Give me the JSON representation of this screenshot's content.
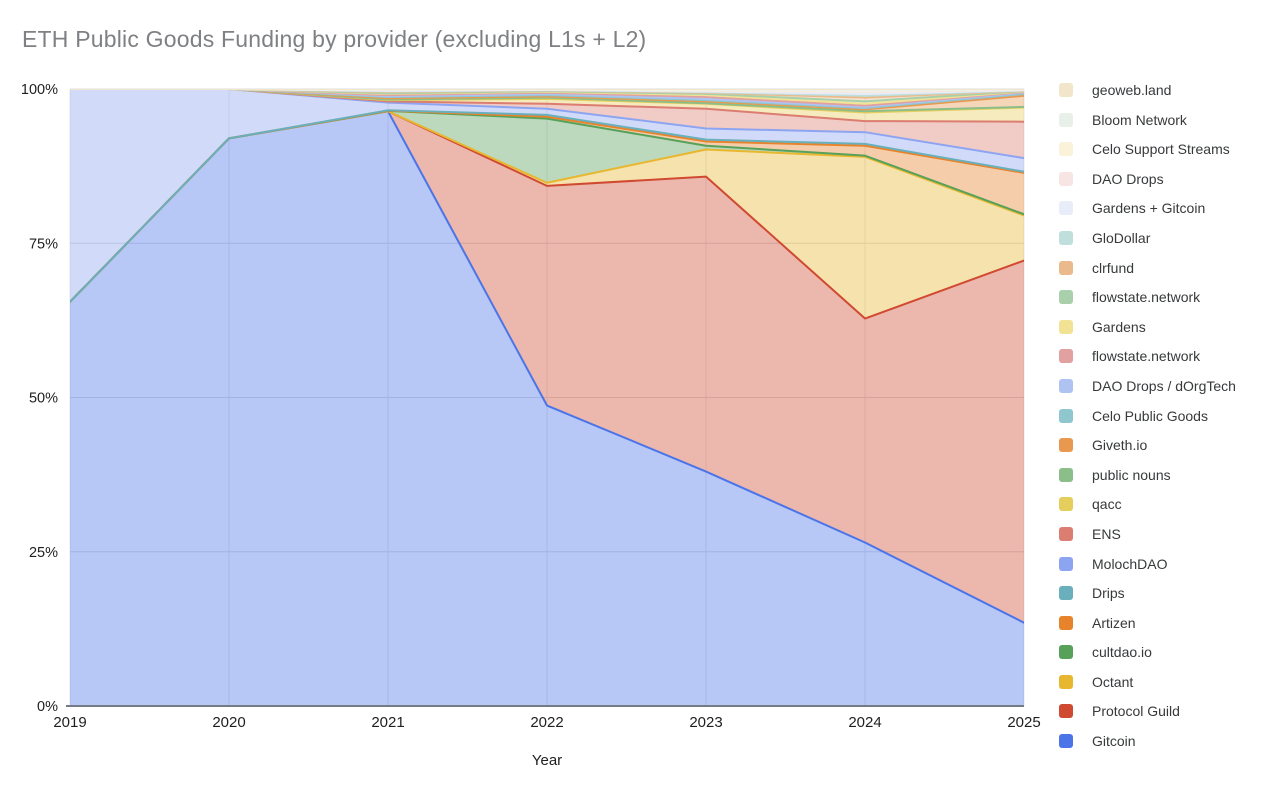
{
  "title": "ETH Public Goods Funding by provider (excluding L1s + L2)",
  "colors": {
    "title_text": "#7e8083",
    "grid_horizontal": "#dadce0",
    "grid_vertical": "#e4e7ec",
    "axis_baseline": "#757b85",
    "tick_text": "#1f1f1f",
    "legend_text": "#37393b",
    "background": "#ffffff"
  },
  "chart_data": {
    "type": "area",
    "stacked": "percent",
    "title": "ETH Public Goods Funding by provider (excluding L1s + L2)",
    "xlabel": "Year",
    "ylabel": "",
    "x": [
      2019,
      2020,
      2021,
      2022,
      2023,
      2024,
      2025
    ],
    "x_tick_labels": [
      "2019",
      "2020",
      "2021",
      "2022",
      "2023",
      "2024",
      "2025"
    ],
    "y_tick_labels": [
      "0%",
      "25%",
      "50%",
      "75%",
      "100%"
    ],
    "y_ticks_percent": [
      0,
      25,
      50,
      75,
      100
    ],
    "ylim": [
      0,
      100
    ],
    "grid": true,
    "legend_position": "right",
    "fill_opacity": 0.4,
    "line_width": 2,
    "series_bottom_to_top": [
      {
        "name": "Gitcoin",
        "color": "#4b74e9",
        "values": [
          65.5,
          92,
          96.4,
          48.7,
          38,
          26.5,
          13.5
        ]
      },
      {
        "name": "Protocol Guild",
        "color": "#d04a31",
        "values": [
          0,
          0,
          0,
          35.6,
          47.8,
          36.3,
          58.7
        ]
      },
      {
        "name": "Octant",
        "color": "#e8b730",
        "values": [
          0,
          0,
          0,
          0.5,
          4.4,
          26.2,
          7.3
        ]
      },
      {
        "name": "cultdao.io",
        "color": "#57a15b",
        "values": [
          0,
          0,
          0.05,
          10.4,
          0.6,
          0.2,
          0.2
        ]
      },
      {
        "name": "Artizen",
        "color": "#e7832b",
        "values": [
          0,
          0,
          0.05,
          0.3,
          0.7,
          1.6,
          6.7
        ]
      },
      {
        "name": "Drips",
        "color": "#6aafbc",
        "values": [
          0,
          0,
          0.05,
          0.3,
          0.3,
          0.3,
          0.2
        ]
      },
      {
        "name": "MolochDAO",
        "color": "#8da5f1",
        "values": [
          34.5,
          8,
          1.25,
          1.0,
          1.8,
          1.9,
          2.2
        ]
      },
      {
        "name": "ENS",
        "color": "#db7d70",
        "values": [
          0,
          0,
          0.2,
          0.8,
          3.2,
          1.8,
          5.9
        ]
      },
      {
        "name": "qacc",
        "color": "#e6ce5d",
        "values": [
          0,
          0,
          0.2,
          0.8,
          0.8,
          1.4,
          2.3
        ]
      },
      {
        "name": "public nouns",
        "color": "#8cbe89",
        "values": [
          0,
          0,
          0.1,
          0.2,
          0.1,
          0.2,
          0.1
        ]
      },
      {
        "name": "Giveth.io",
        "color": "#e8994f",
        "values": [
          0,
          0,
          0.2,
          0.2,
          0.3,
          0.3,
          1.8
        ]
      },
      {
        "name": "Celo Public Goods",
        "color": "#90c7cf",
        "values": [
          0,
          0,
          0.2,
          0.2,
          0.2,
          0.2,
          0.3
        ]
      },
      {
        "name": "DAO Drops / dOrgTech",
        "color": "#afc3f3",
        "values": [
          0,
          0,
          0.15,
          0.2,
          0.2,
          0.2,
          0.2
        ]
      },
      {
        "name": "flowstate.network",
        "color": "#e1a1a1",
        "values": [
          0,
          0,
          0.15,
          0.2,
          0.3,
          0.2,
          0.1
        ]
      },
      {
        "name": "Gardens",
        "color": "#f1e294",
        "values": [
          0,
          0,
          0.2,
          0.15,
          0.3,
          0.3,
          0.1
        ]
      },
      {
        "name": "flowstate.network",
        "color": "#a9d0aa",
        "values": [
          0,
          0,
          0.1,
          0.1,
          0.2,
          0.4,
          0.05
        ]
      },
      {
        "name": "clrfund",
        "color": "#ebba8c",
        "values": [
          0,
          0,
          0.2,
          0.1,
          0.2,
          0.6,
          0.05
        ]
      },
      {
        "name": "GloDollar",
        "color": "#bedfdb",
        "values": [
          0,
          0,
          0.1,
          0.05,
          0.1,
          0.3,
          0.05
        ]
      },
      {
        "name": "Gardens + Gitcoin",
        "color": "#e9edfa",
        "values": [
          0,
          0,
          0.1,
          0.05,
          0.1,
          0.3,
          0.05
        ]
      },
      {
        "name": "DAO Drops",
        "color": "#f7e5e3",
        "values": [
          0,
          0,
          0.1,
          0.05,
          0.1,
          0.3,
          0.05
        ]
      },
      {
        "name": "Celo Support Streams",
        "color": "#faf3d9",
        "values": [
          0,
          0,
          0.05,
          0.03,
          0.1,
          0.2,
          0.05
        ]
      },
      {
        "name": "Bloom Network",
        "color": "#e9f0ea",
        "values": [
          0,
          0,
          0.05,
          0.02,
          0.1,
          0.1,
          0.02
        ]
      },
      {
        "name": "geoweb.land",
        "color": "#f1e6c9",
        "values": [
          0,
          0,
          0.1,
          0.05,
          0.1,
          0.2,
          0.08
        ]
      }
    ]
  }
}
